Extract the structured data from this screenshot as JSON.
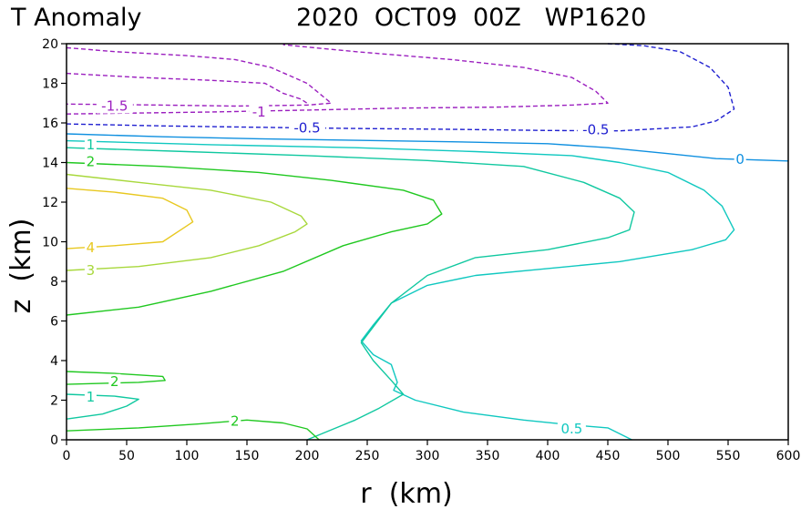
{
  "chart_data": {
    "type": "contour",
    "title_left": "T Anomaly",
    "title_right": "2020  OCT09  00Z   WP1620",
    "xlabel": "r  (km)",
    "ylabel": "z  (km)",
    "xlim": [
      0,
      600
    ],
    "ylim": [
      0,
      20
    ],
    "xticks": [
      "0",
      "50",
      "100",
      "150",
      "200",
      "250",
      "300",
      "350",
      "400",
      "450",
      "500",
      "550",
      "600"
    ],
    "yticks": [
      "0",
      "2",
      "4",
      "6",
      "8",
      "10",
      "12",
      "14",
      "16",
      "18",
      "20"
    ],
    "contours": [
      {
        "level": -1.5,
        "label": "-1.5",
        "color": "#9b1fbf",
        "dashed": true,
        "label_at": [
          40,
          16.85
        ],
        "paths": [
          [
            [
              0,
              19.8
            ],
            [
              40,
              19.6
            ],
            [
              100,
              19.4
            ],
            [
              140,
              19.2
            ],
            [
              170,
              18.8
            ],
            [
              200,
              18.0
            ],
            [
              220,
              17.0
            ],
            [
              200,
              16.9
            ],
            [
              140,
              16.85
            ],
            [
              80,
              16.9
            ],
            [
              0,
              16.95
            ]
          ],
          [
            [
              0,
              18.5
            ],
            [
              60,
              18.3
            ],
            [
              120,
              18.15
            ],
            [
              165,
              18.0
            ],
            [
              180,
              17.5
            ],
            [
              195,
              17.2
            ],
            [
              200,
              17.0
            ]
          ]
        ]
      },
      {
        "level": -1,
        "label": "-1",
        "color": "#9b1fbf",
        "dashed": true,
        "label_at": [
          160,
          16.55
        ],
        "paths": [
          [
            [
              0,
              16.45
            ],
            [
              60,
              16.5
            ],
            [
              120,
              16.55
            ],
            [
              200,
              16.65
            ],
            [
              280,
              16.75
            ],
            [
              360,
              16.8
            ],
            [
              420,
              16.9
            ],
            [
              450,
              17.0
            ],
            [
              440,
              17.6
            ],
            [
              420,
              18.3
            ],
            [
              380,
              18.8
            ],
            [
              320,
              19.2
            ],
            [
              240,
              19.6
            ],
            [
              180,
              19.95
            ]
          ]
        ]
      },
      {
        "level": -0.5,
        "label": "-0.5",
        "color": "#2020d0",
        "dashed": true,
        "label_at": [
          200,
          15.75
        ],
        "label_at2": [
          440,
          15.65
        ],
        "paths": [
          [
            [
              0,
              15.95
            ],
            [
              80,
              15.85
            ],
            [
              160,
              15.78
            ],
            [
              240,
              15.72
            ],
            [
              320,
              15.68
            ],
            [
              400,
              15.62
            ],
            [
              460,
              15.6
            ],
            [
              520,
              15.8
            ],
            [
              540,
              16.1
            ],
            [
              555,
              16.7
            ],
            [
              550,
              17.8
            ],
            [
              535,
              18.8
            ],
            [
              510,
              19.6
            ],
            [
              480,
              19.9
            ],
            [
              450,
              20.0
            ]
          ]
        ]
      },
      {
        "level": 0,
        "label": "0",
        "color": "#1090e0",
        "dashed": false,
        "label_at": [
          560,
          14.15
        ],
        "paths": [
          [
            [
              0,
              15.45
            ],
            [
              80,
              15.3
            ],
            [
              160,
              15.2
            ],
            [
              240,
              15.12
            ],
            [
              320,
              15.05
            ],
            [
              400,
              14.95
            ],
            [
              450,
              14.75
            ],
            [
              500,
              14.45
            ],
            [
              540,
              14.2
            ],
            [
              580,
              14.12
            ],
            [
              600,
              14.08
            ]
          ]
        ]
      },
      {
        "level": 0.5,
        "label": "0.5",
        "color": "#10c8c0",
        "dashed": false,
        "label_at": [
          420,
          0.55
        ],
        "paths": [
          [
            [
              0,
              15.1
            ],
            [
              120,
              14.9
            ],
            [
              240,
              14.75
            ],
            [
              340,
              14.55
            ],
            [
              420,
              14.35
            ],
            [
              460,
              14.0
            ],
            [
              500,
              13.5
            ],
            [
              530,
              12.6
            ],
            [
              545,
              11.8
            ],
            [
              555,
              10.6
            ],
            [
              548,
              10.1
            ],
            [
              520,
              9.6
            ],
            [
              460,
              9.0
            ],
            [
              400,
              8.65
            ],
            [
              340,
              8.3
            ],
            [
              300,
              7.8
            ],
            [
              270,
              6.9
            ],
            [
              255,
              5.8
            ],
            [
              245,
              5.0
            ],
            [
              255,
              4.3
            ],
            [
              270,
              3.8
            ],
            [
              275,
              2.9
            ],
            [
              272,
              2.5
            ],
            [
              290,
              2.0
            ],
            [
              330,
              1.4
            ],
            [
              380,
              1.0
            ],
            [
              420,
              0.75
            ],
            [
              450,
              0.6
            ],
            [
              470,
              0.0
            ]
          ]
        ]
      },
      {
        "level": 1,
        "label": "1",
        "color": "#10c8a0",
        "dashed": false,
        "label_at": [
          20,
          14.9
        ],
        "label_at2": [
          20,
          2.15
        ],
        "paths": [
          [
            [
              0,
              14.75
            ],
            [
              100,
              14.55
            ],
            [
              200,
              14.35
            ],
            [
              300,
              14.1
            ],
            [
              380,
              13.8
            ],
            [
              430,
              13.0
            ],
            [
              460,
              12.2
            ],
            [
              472,
              11.5
            ],
            [
              468,
              10.6
            ],
            [
              450,
              10.2
            ],
            [
              400,
              9.6
            ],
            [
              340,
              9.2
            ],
            [
              300,
              8.3
            ],
            [
              270,
              6.9
            ],
            [
              250,
              5.3
            ],
            [
              245,
              4.9
            ],
            [
              255,
              4.0
            ],
            [
              270,
              3.0
            ],
            [
              280,
              2.3
            ],
            [
              260,
              1.6
            ],
            [
              240,
              1.0
            ],
            [
              220,
              0.5
            ],
            [
              200,
              0.0
            ]
          ],
          [
            [
              0,
              1.05
            ],
            [
              30,
              1.3
            ],
            [
              50,
              1.7
            ],
            [
              60,
              2.05
            ],
            [
              40,
              2.2
            ],
            [
              0,
              2.3
            ]
          ]
        ]
      },
      {
        "level": 2,
        "label": "2",
        "color": "#20c820",
        "dashed": false,
        "label_at": [
          20,
          14.05
        ],
        "label_at2": [
          40,
          2.95
        ],
        "label_at3": [
          140,
          0.95
        ],
        "paths": [
          [
            [
              0,
              14.0
            ],
            [
              80,
              13.8
            ],
            [
              160,
              13.5
            ],
            [
              220,
              13.1
            ],
            [
              280,
              12.6
            ],
            [
              305,
              12.1
            ],
            [
              312,
              11.4
            ],
            [
              300,
              10.9
            ],
            [
              270,
              10.5
            ],
            [
              230,
              9.8
            ],
            [
              180,
              8.5
            ],
            [
              120,
              7.5
            ],
            [
              60,
              6.7
            ],
            [
              0,
              6.3
            ]
          ],
          [
            [
              0,
              3.45
            ],
            [
              40,
              3.35
            ],
            [
              80,
              3.2
            ],
            [
              82,
              3.0
            ],
            [
              60,
              2.9
            ],
            [
              0,
              2.8
            ]
          ],
          [
            [
              0,
              0.45
            ],
            [
              60,
              0.6
            ],
            [
              110,
              0.8
            ],
            [
              150,
              1.0
            ],
            [
              180,
              0.85
            ],
            [
              200,
              0.55
            ],
            [
              210,
              0.0
            ]
          ]
        ]
      },
      {
        "level": 3,
        "label": "3",
        "color": "#a8d83c",
        "dashed": false,
        "label_at": [
          20,
          8.55
        ],
        "paths": [
          [
            [
              0,
              13.4
            ],
            [
              60,
              13.0
            ],
            [
              120,
              12.6
            ],
            [
              170,
              12.0
            ],
            [
              195,
              11.3
            ],
            [
              200,
              10.9
            ],
            [
              190,
              10.5
            ],
            [
              160,
              9.8
            ],
            [
              120,
              9.2
            ],
            [
              60,
              8.75
            ],
            [
              0,
              8.55
            ]
          ]
        ]
      },
      {
        "level": 4,
        "label": "4",
        "color": "#e8c820",
        "dashed": false,
        "label_at": [
          20,
          9.7
        ],
        "paths": [
          [
            [
              0,
              12.7
            ],
            [
              40,
              12.5
            ],
            [
              80,
              12.2
            ],
            [
              100,
              11.6
            ],
            [
              105,
              11.0
            ],
            [
              95,
              10.6
            ],
            [
              80,
              10.0
            ],
            [
              40,
              9.8
            ],
            [
              0,
              9.65
            ]
          ]
        ]
      }
    ]
  }
}
